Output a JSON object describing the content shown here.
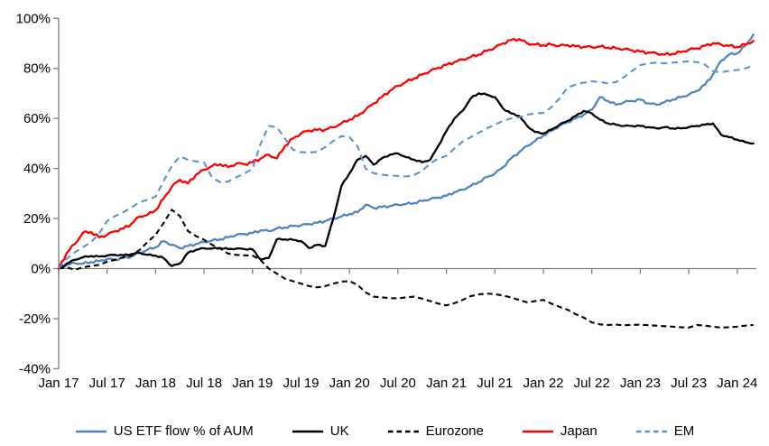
{
  "chart_data": {
    "type": "line",
    "title": "",
    "xlabel": "",
    "ylabel": "",
    "grid": false,
    "legend_position": "bottom",
    "x_unit": "months since Jan 2017, monthly points Jan-17 through Mar-24",
    "x_tick_labels": [
      "Jan 17",
      "Jul 17",
      "Jan 18",
      "Jul 18",
      "Jan 19",
      "Jul 19",
      "Jan 20",
      "Jul 20",
      "Jan 21",
      "Jul 21",
      "Jan 22",
      "Jul 22",
      "Jan 23",
      "Jul 23",
      "Jan 24"
    ],
    "x_tick_month_indices": [
      0,
      6,
      12,
      18,
      24,
      30,
      36,
      42,
      48,
      54,
      60,
      66,
      72,
      78,
      84
    ],
    "y_axis": {
      "min": -40,
      "max": 100,
      "tick_values": [
        100,
        80,
        60,
        40,
        20,
        0,
        -20,
        -40
      ],
      "tick_labels": [
        "100%",
        "80%",
        "60%",
        "40%",
        "20%",
        "0%",
        "-20%",
        "-40%"
      ]
    },
    "series": [
      {
        "name": "US ETF flow % of AUM",
        "color": "#4f86be",
        "style": "solid",
        "values": [
          0,
          1.5,
          2.2,
          2.0,
          2.6,
          3.0,
          3.8,
          3.6,
          4.3,
          4.8,
          6.3,
          7.5,
          8.5,
          11.0,
          9.5,
          8.2,
          9.0,
          9.8,
          10.6,
          11.2,
          11.7,
          12.5,
          13.5,
          13.8,
          14.2,
          15.3,
          15.0,
          16.0,
          16.4,
          17.0,
          17.3,
          17.8,
          18.3,
          19.0,
          20.0,
          20.8,
          21.8,
          22.5,
          25.5,
          24.2,
          24.6,
          25.0,
          25.5,
          25.8,
          26.2,
          27.0,
          27.8,
          28.4,
          29.1,
          30.5,
          31.5,
          33.0,
          34.5,
          36.5,
          38.0,
          40.5,
          44.0,
          46.5,
          49.0,
          51.0,
          53.2,
          55.0,
          57.0,
          58.5,
          60.0,
          61.5,
          63.5,
          68.5,
          67.0,
          65.5,
          66.5,
          67.0,
          67.5,
          66.0,
          65.5,
          66.5,
          67.5,
          68.5,
          69.5,
          71.0,
          73.5,
          77.5,
          83.0,
          85.5,
          86.0,
          89.0,
          93.5
        ]
      },
      {
        "name": "UK",
        "color": "#000000",
        "style": "solid",
        "values": [
          0,
          2.0,
          3.5,
          4.5,
          5.0,
          4.8,
          5.2,
          5.5,
          5.3,
          5.8,
          6.3,
          5.5,
          5.2,
          4.2,
          1.0,
          2.0,
          6.3,
          7.5,
          8.1,
          8.0,
          8.2,
          7.8,
          8.0,
          7.8,
          7.7,
          3.6,
          4.2,
          11.7,
          11.7,
          11.5,
          11.0,
          8.2,
          9.5,
          9.0,
          20.0,
          33.0,
          38.0,
          43.5,
          45.0,
          41.5,
          44.0,
          45.5,
          46.0,
          44.5,
          43.5,
          42.5,
          43.5,
          49.0,
          55.0,
          60.0,
          63.0,
          68.0,
          70.0,
          69.5,
          68.5,
          64.0,
          62.0,
          61.0,
          57.0,
          54.5,
          54.0,
          55.5,
          57.5,
          59.0,
          61.0,
          63.0,
          62.0,
          59.5,
          58.0,
          57.5,
          57.0,
          57.0,
          57.0,
          56.5,
          56.0,
          56.5,
          56.0,
          56.0,
          56.5,
          57.0,
          57.5,
          58.0,
          53.5,
          52.5,
          51.5,
          50.5,
          50.0
        ]
      },
      {
        "name": "Eurozone",
        "color": "#000000",
        "style": "dashed",
        "values": [
          0,
          0.5,
          -0.5,
          0.5,
          1.0,
          1.5,
          2.7,
          3.5,
          4.5,
          5.2,
          7.4,
          10.6,
          13.5,
          18.2,
          23.5,
          21.0,
          15.0,
          13.0,
          11.5,
          9.5,
          8.0,
          6.0,
          5.5,
          5.3,
          5.2,
          3.4,
          0.0,
          -2.0,
          -4.0,
          -5.0,
          -6.0,
          -7.0,
          -7.5,
          -7.0,
          -6.0,
          -5.2,
          -5.0,
          -6.5,
          -9.5,
          -11.2,
          -11.5,
          -11.8,
          -11.9,
          -11.5,
          -11.2,
          -12.0,
          -13.0,
          -14.0,
          -14.7,
          -13.8,
          -12.5,
          -11.0,
          -10.3,
          -10.0,
          -10.2,
          -10.8,
          -11.5,
          -12.5,
          -13.5,
          -13.0,
          -12.5,
          -14.0,
          -15.3,
          -16.4,
          -18.2,
          -19.6,
          -21.5,
          -22.3,
          -22.5,
          -22.4,
          -22.6,
          -22.5,
          -22.4,
          -22.6,
          -22.8,
          -23.0,
          -23.2,
          -23.4,
          -23.6,
          -22.5,
          -22.8,
          -23.2,
          -23.6,
          -23.4,
          -23.2,
          -22.8,
          -22.5
        ]
      },
      {
        "name": "Japan",
        "color": "#fe0000",
        "style": "solid",
        "values": [
          0,
          6.3,
          9.9,
          14.3,
          14.6,
          12.5,
          13.5,
          15.0,
          16.0,
          17.9,
          20.8,
          21.5,
          23.3,
          28.0,
          32.7,
          35.5,
          34.0,
          37.5,
          39.5,
          41.0,
          41.7,
          40.5,
          42.0,
          41.7,
          42.5,
          44.0,
          45.5,
          44.0,
          48.9,
          52.0,
          54.0,
          55.2,
          55.4,
          55.5,
          56.5,
          58.0,
          59.5,
          61.0,
          63.5,
          66.0,
          68.5,
          71.0,
          73.0,
          74.5,
          76.0,
          77.5,
          79.0,
          80.2,
          81.4,
          82.5,
          83.5,
          84.5,
          85.5,
          87.0,
          88.3,
          90.0,
          91.3,
          91.7,
          90.0,
          89.5,
          89.2,
          89.5,
          89.0,
          89.3,
          88.8,
          88.6,
          88.5,
          88.7,
          88.3,
          88.0,
          87.7,
          87.2,
          86.7,
          86.3,
          86.0,
          85.5,
          85.8,
          86.5,
          87.4,
          88.0,
          89.0,
          90.0,
          89.5,
          89.0,
          88.5,
          89.5,
          91.0
        ]
      },
      {
        "name": "EM",
        "color": "#5e93c9",
        "style": "dashed",
        "values": [
          0,
          4.0,
          6.5,
          8.5,
          10.5,
          14.0,
          19.0,
          21.0,
          22.5,
          24.4,
          26.5,
          27.5,
          28.7,
          35.0,
          41.0,
          44.8,
          43.5,
          42.8,
          42.4,
          36.3,
          34.5,
          34.8,
          36.5,
          38.0,
          39.9,
          50.0,
          57.0,
          56.5,
          52.0,
          47.5,
          46.5,
          46.4,
          46.6,
          48.5,
          51.0,
          52.9,
          52.5,
          48.9,
          39.9,
          38.1,
          37.5,
          37.2,
          37.0,
          36.8,
          37.4,
          39.0,
          42.0,
          44.0,
          45.0,
          48.0,
          50.7,
          52.5,
          54.3,
          56.0,
          57.5,
          59.0,
          60.0,
          60.4,
          61.5,
          62.0,
          62.2,
          64.5,
          68.0,
          72.3,
          73.5,
          74.3,
          74.8,
          74.5,
          74.0,
          74.5,
          76.5,
          79.0,
          81.3,
          82.0,
          82.3,
          82.0,
          82.3,
          82.5,
          82.8,
          82.5,
          81.5,
          78.8,
          78.4,
          79.0,
          79.3,
          80.0,
          81.0
        ]
      }
    ]
  },
  "legend": {
    "items": [
      {
        "label": "US ETF flow % of AUM"
      },
      {
        "label": "UK"
      },
      {
        "label": "Eurozone"
      },
      {
        "label": "Japan"
      },
      {
        "label": "EM"
      }
    ]
  }
}
